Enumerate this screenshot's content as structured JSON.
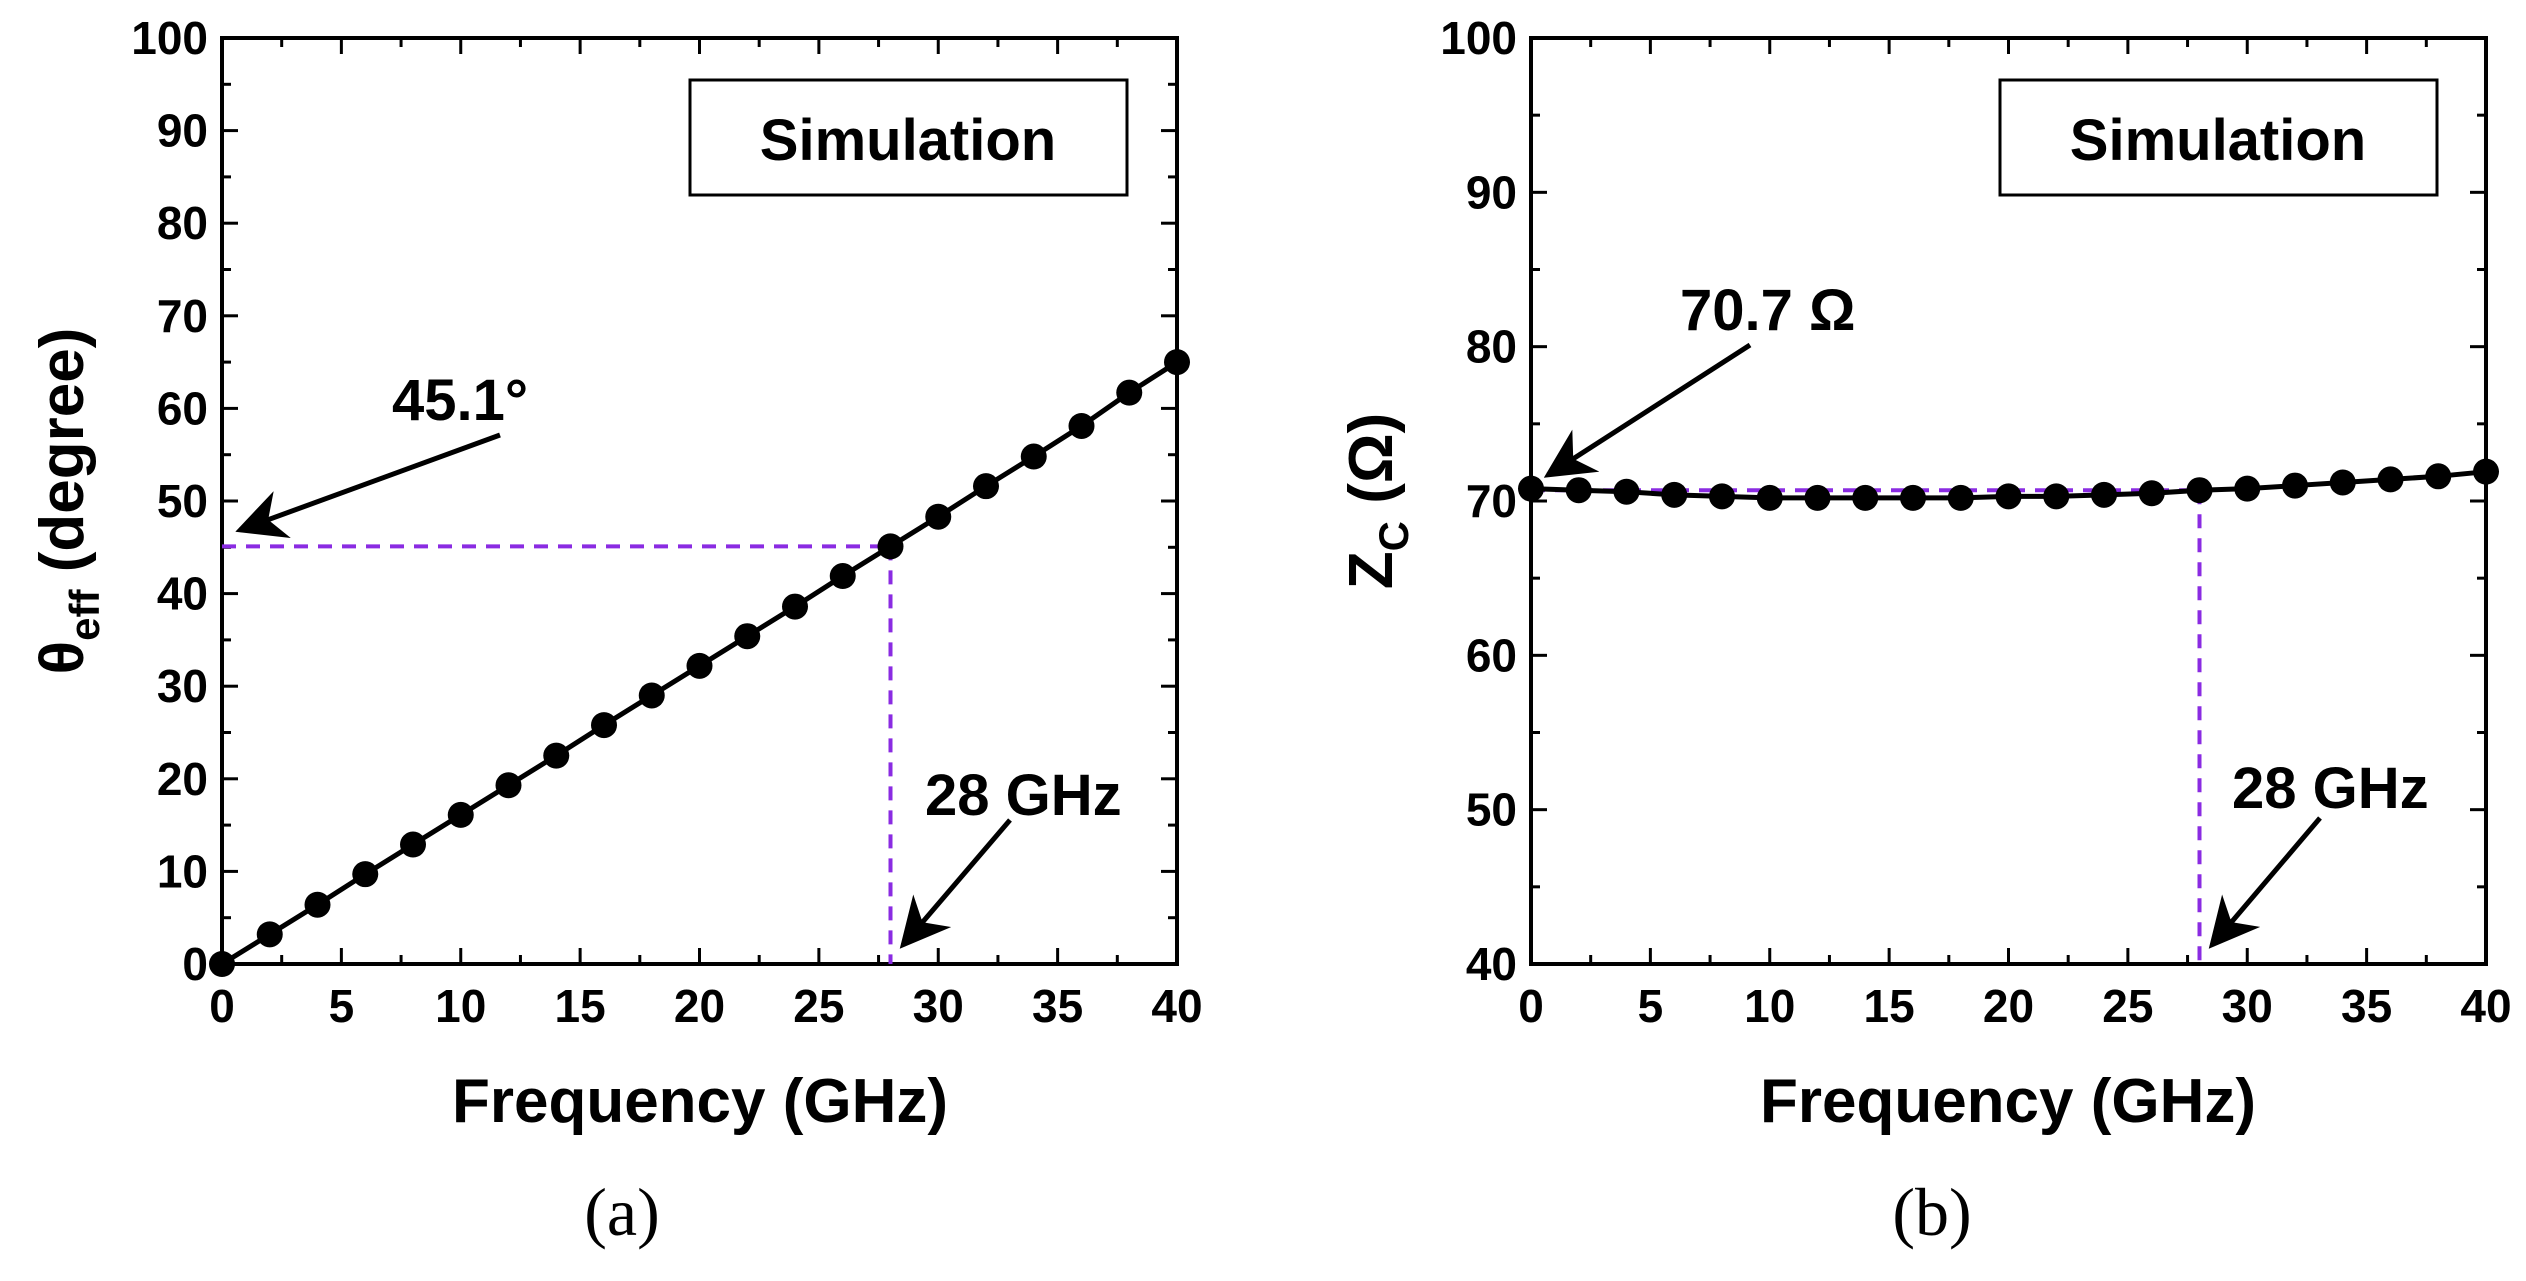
{
  "chart_data": [
    {
      "type": "line",
      "panel_label": "(a)",
      "legend_box": "Simulation",
      "xlabel": "Frequency (GHz)",
      "ylabel_main": "θ",
      "ylabel_sub": "eff",
      "ylabel_rest": " (degree)",
      "xlim": [
        0,
        40
      ],
      "ylim": [
        0,
        100
      ],
      "xticks": [
        0,
        5,
        10,
        15,
        20,
        25,
        30,
        35,
        40
      ],
      "yticks": [
        0,
        10,
        20,
        30,
        40,
        50,
        60,
        70,
        80,
        90,
        100
      ],
      "series": [
        {
          "name": "Simulation",
          "x": [
            0,
            2,
            4,
            6,
            8,
            10,
            12,
            14,
            16,
            18,
            20,
            22,
            24,
            26,
            28,
            30,
            32,
            34,
            36,
            38,
            40
          ],
          "y": [
            0,
            3.2,
            6.4,
            9.7,
            12.9,
            16.1,
            19.3,
            22.5,
            25.8,
            29.0,
            32.2,
            35.4,
            38.6,
            41.9,
            45.1,
            48.3,
            51.6,
            54.8,
            58.1,
            61.7,
            65.0
          ]
        }
      ],
      "annotations": {
        "value_text": "45.1°",
        "value": 45.1,
        "freq_text": "28 GHz",
        "freq": 28
      }
    },
    {
      "type": "line",
      "panel_label": "(b)",
      "legend_box": "Simulation",
      "xlabel": "Frequency (GHz)",
      "ylabel_main": "Z",
      "ylabel_sub": "C",
      "ylabel_rest": " (Ω)",
      "xlim": [
        0,
        40
      ],
      "ylim": [
        40,
        100
      ],
      "xticks": [
        0,
        5,
        10,
        15,
        20,
        25,
        30,
        35,
        40
      ],
      "yticks": [
        40,
        50,
        60,
        70,
        80,
        90,
        100
      ],
      "series": [
        {
          "name": "Simulation",
          "x": [
            0,
            2,
            4,
            6,
            8,
            10,
            12,
            14,
            16,
            18,
            20,
            22,
            24,
            26,
            28,
            30,
            32,
            34,
            36,
            38,
            40
          ],
          "y": [
            70.8,
            70.7,
            70.6,
            70.4,
            70.3,
            70.2,
            70.2,
            70.2,
            70.2,
            70.2,
            70.3,
            70.3,
            70.4,
            70.5,
            70.7,
            70.8,
            71.0,
            71.2,
            71.4,
            71.6,
            71.9
          ]
        }
      ],
      "annotations": {
        "value_text": "70.7 Ω",
        "value": 70.7,
        "freq_text": "28 GHz",
        "freq": 28
      }
    }
  ],
  "colors": {
    "series": "#000000",
    "guide": "#8a2be2"
  }
}
